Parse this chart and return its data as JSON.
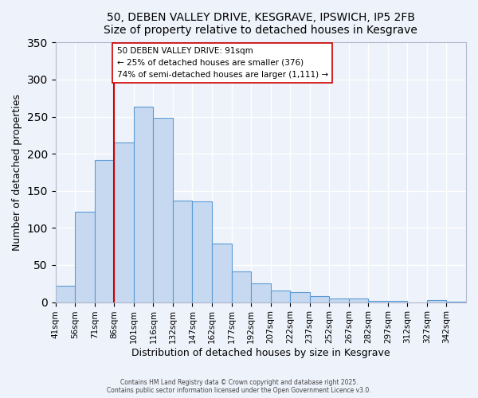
{
  "title": "50, DEBEN VALLEY DRIVE, KESGRAVE, IPSWICH, IP5 2FB",
  "subtitle": "Size of property relative to detached houses in Kesgrave",
  "xlabel": "Distribution of detached houses by size in Kesgrave",
  "ylabel": "Number of detached properties",
  "bar_labels": [
    "41sqm",
    "56sqm",
    "71sqm",
    "86sqm",
    "101sqm",
    "116sqm",
    "132sqm",
    "147sqm",
    "162sqm",
    "177sqm",
    "192sqm",
    "207sqm",
    "222sqm",
    "237sqm",
    "252sqm",
    "267sqm",
    "282sqm",
    "297sqm",
    "312sqm",
    "327sqm",
    "342sqm"
  ],
  "bar_values": [
    22,
    122,
    192,
    215,
    263,
    248,
    137,
    136,
    79,
    41,
    25,
    16,
    13,
    8,
    5,
    5,
    2,
    2,
    0,
    3,
    1
  ],
  "bar_color": "#c6d9f0",
  "bar_edge_color": "#5b9bd5",
  "vline_x": 86,
  "vline_color": "#cc0000",
  "annotation_title": "50 DEBEN VALLEY DRIVE: 91sqm",
  "annotation_line2": "← 25% of detached houses are smaller (376)",
  "annotation_line3": "74% of semi-detached houses are larger (1,111) →",
  "annotation_box_color": "#ffffff",
  "annotation_box_edge": "#cc0000",
  "bg_color": "#eef2fb",
  "grid_color": "#ffffff",
  "ylim": [
    0,
    350
  ],
  "yticks": [
    0,
    50,
    100,
    150,
    200,
    250,
    300,
    350
  ],
  "footnote1": "Contains HM Land Registry data © Crown copyright and database right 2025.",
  "footnote2": "Contains public sector information licensed under the Open Government Licence v3.0."
}
